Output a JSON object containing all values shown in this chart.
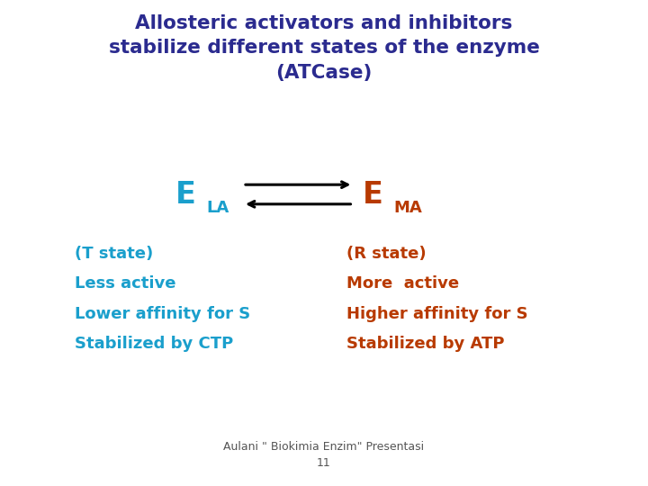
{
  "background_color": "#ffffff",
  "title_lines": [
    "Allosteric activators and inhibitors",
    "stabilize different states of the enzyme",
    "(ATCase)"
  ],
  "title_color": "#2b2b8f",
  "title_fontsize": 15.5,
  "ela_label": "E",
  "ela_sub": "LA",
  "ema_label": "E",
  "ema_sub": "MA",
  "ela_color": "#1a9fcc",
  "ema_color": "#b83a00",
  "label_fontsize": 24,
  "sub_fontsize": 13,
  "left_lines": [
    "(T state)",
    "Less active",
    "Lower affinity for S",
    "Stabilized by CTP"
  ],
  "right_lines": [
    "(R state)",
    "More  active",
    "Higher affinity for S",
    "Stabilized by ATP"
  ],
  "left_color": "#1a9fcc",
  "right_color": "#b83a00",
  "body_fontsize": 13,
  "footer_color": "#555555",
  "footer_fontsize": 9
}
